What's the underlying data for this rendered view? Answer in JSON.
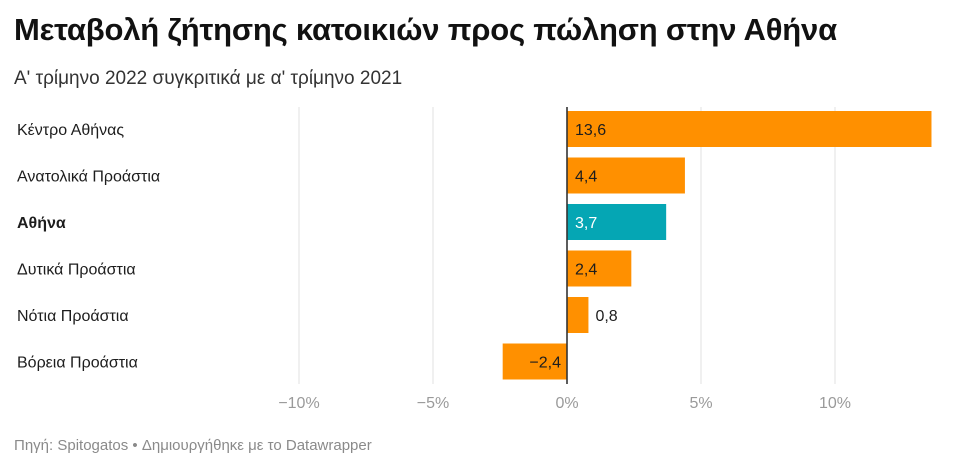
{
  "title": "Μεταβολή ζήτησης κατοικιών προς πώληση στην Αθήνα",
  "subtitle": "Α' τρίμηνο 2022 συγκριτικά με α' τρίμηνο 2021",
  "footer": {
    "source": "Πηγή: Spitogatos",
    "separator": " • ",
    "made_with": "Δημιουργήθηκε με το Datawrapper"
  },
  "chart_data": {
    "type": "bar",
    "orientation": "horizontal",
    "categories": [
      "Κέντρο Αθήνας",
      "Ανατολικά Προάστια",
      "Αθήνα",
      "Δυτικά Προάστια",
      "Νότια Προάστια",
      "Βόρεια Προάστια"
    ],
    "values": [
      13.6,
      4.4,
      3.7,
      2.4,
      0.8,
      -2.4
    ],
    "value_labels": [
      "13,6",
      "4,4",
      "3,7",
      "2,4",
      "0,8",
      "−2,4"
    ],
    "highlight_category": "Αθήνα",
    "colors": {
      "default": "#ff9000",
      "highlight": "#05a6b4",
      "gridline": "#e6e6e6",
      "zero_line": "#333333"
    },
    "x_ticks": [
      -10,
      -5,
      0,
      5,
      10
    ],
    "x_tick_labels": [
      "−10%",
      "−5%",
      "0%",
      "5%",
      "10%"
    ],
    "xlim": [
      -10,
      13.6
    ],
    "grid": true
  }
}
